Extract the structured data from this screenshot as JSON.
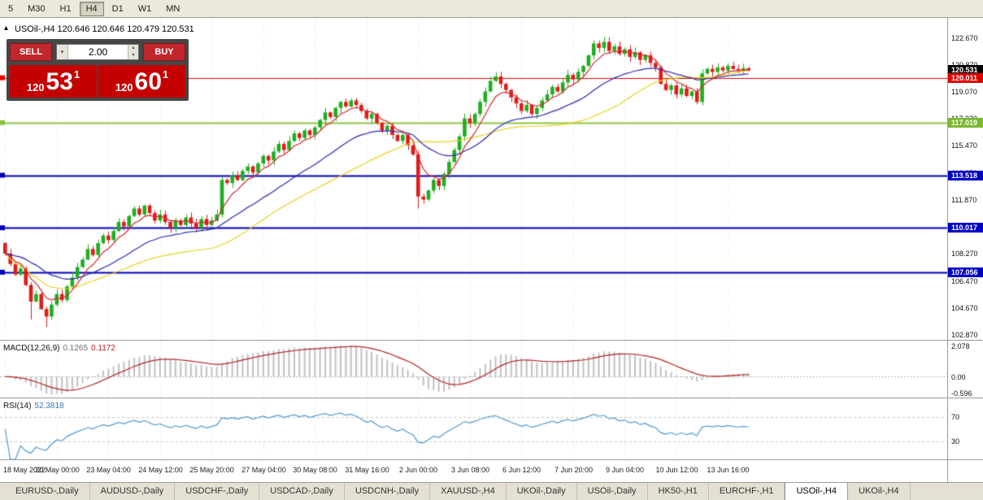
{
  "toolbar": {
    "timeframes": [
      "5",
      "M30",
      "H1",
      "H4",
      "D1",
      "W1",
      "MN"
    ],
    "active": "H4"
  },
  "chart": {
    "title": "USOil-,H4 120.646 120.646 120.479 120.531"
  },
  "icons": {
    "collapse": "▴",
    "dropdown": "▾",
    "spin_up": "▴",
    "spin_down": "▾"
  },
  "trade_panel": {
    "sell_label": "SELL",
    "buy_label": "BUY",
    "volume": "2.00",
    "sell_price": {
      "prefix": "120",
      "big": "53",
      "sup": "1"
    },
    "buy_price": {
      "prefix": "120",
      "big": "60",
      "sup": "1"
    }
  },
  "price_axis": {
    "ticks": [
      122.67,
      120.87,
      119.07,
      117.27,
      115.47,
      113.67,
      111.87,
      110.07,
      108.27,
      106.47,
      104.67,
      102.87
    ],
    "badges": [
      {
        "value": "120.531",
        "price": 120.531,
        "bg": "#000000",
        "kind": "current"
      },
      {
        "value": "120.011",
        "price": 120.011,
        "bg": "#e00000",
        "kind": "line"
      },
      {
        "value": "117.019",
        "price": 117.019,
        "bg": "#7ab82e",
        "kind": "line"
      },
      {
        "value": "113.518",
        "price": 113.518,
        "bg": "#0000c8",
        "kind": "line"
      },
      {
        "value": "110.017",
        "price": 110.017,
        "bg": "#0000c8",
        "kind": "line"
      },
      {
        "value": "107.056",
        "price": 107.056,
        "bg": "#0000c8",
        "kind": "line"
      }
    ]
  },
  "macd": {
    "name": "MACD(12,26,9)",
    "value1": "0.1265",
    "value2": "0.1172",
    "axis_top": "2.078",
    "axis_zero": "0.00",
    "axis_bottom": "-0.596"
  },
  "rsi": {
    "name": "RSI(14)",
    "value": "52.3818",
    "levels": [
      70,
      30
    ],
    "level_labels": [
      "70",
      "30"
    ]
  },
  "time_axis": [
    "18 May 2022",
    "20 May 00:00",
    "23 May 04:00",
    "24 May 12:00",
    "25 May 20:00",
    "27 May 04:00",
    "30 May 08:00",
    "31 May 16:00",
    "2 Jun 00:00",
    "3 Jun 08:00",
    "6 Jun 12:00",
    "7 Jun 20:00",
    "9 Jun 04:00",
    "10 Jun 12:00",
    "13 Jun 16:00"
  ],
  "tabs": {
    "items": [
      "EURUSD-,Daily",
      "AUDUSD-,Daily",
      "USDCHF-,Daily",
      "USDCAD-,Daily",
      "USDCNH-,Daily",
      "XAUUSD-,H4",
      "UKOil-,Daily",
      "USOil-,Daily",
      "HK50-,H1",
      "EURCHF-,H1",
      "USOil-,H4",
      "UKOil-,H4"
    ],
    "active": "USOil-,H4"
  },
  "chart_data": {
    "type": "candlestick",
    "symbol": "USOil-",
    "period": "H4",
    "last_ohlc": {
      "open": 120.646,
      "high": 120.646,
      "low": 120.479,
      "close": 120.531
    },
    "price_range": [
      102.55,
      124.0
    ],
    "first_open": 109.0,
    "closes": [
      108.3,
      107.6,
      106.9,
      107.3,
      106.2,
      105.1,
      105.6,
      104.6,
      104.1,
      104.9,
      105.6,
      105.2,
      106.1,
      106.7,
      107.4,
      107.9,
      108.6,
      108.2,
      109.0,
      109.5,
      109.2,
      109.8,
      110.4,
      110.1,
      110.8,
      111.3,
      110.9,
      111.5,
      111.0,
      110.5,
      110.9,
      110.4,
      110.0,
      110.5,
      110.2,
      110.7,
      110.3,
      110.0,
      110.6,
      110.2,
      110.5,
      110.9,
      113.2,
      113.0,
      113.5,
      113.2,
      113.8,
      114.1,
      113.7,
      114.3,
      114.8,
      114.5,
      115.1,
      115.6,
      115.2,
      115.8,
      116.3,
      116.0,
      116.5,
      116.2,
      116.7,
      117.2,
      117.7,
      117.4,
      118.0,
      118.4,
      118.1,
      118.5,
      118.2,
      117.8,
      117.3,
      117.6,
      117.0,
      116.5,
      116.8,
      116.2,
      115.8,
      116.2,
      115.5,
      114.9,
      112.1,
      111.9,
      112.5,
      113.2,
      112.8,
      113.6,
      114.4,
      115.2,
      116.1,
      117.3,
      117.0,
      117.6,
      118.4,
      119.1,
      119.8,
      120.1,
      119.6,
      119.2,
      118.7,
      118.3,
      117.8,
      118.2,
      117.6,
      118.0,
      118.5,
      118.9,
      119.4,
      119.1,
      119.7,
      120.2,
      119.9,
      120.4,
      120.8,
      121.5,
      122.3,
      122.0,
      122.4,
      121.8,
      122.1,
      121.6,
      121.9,
      121.4,
      121.7,
      121.2,
      121.5,
      121.0,
      120.7,
      119.6,
      119.2,
      119.5,
      118.9,
      119.3,
      118.8,
      119.1,
      118.4,
      120.3,
      120.6,
      120.4,
      120.7,
      120.5,
      120.8,
      120.6,
      120.5,
      120.65,
      120.531
    ],
    "wick_overrides": {
      "5": {
        "low": 103.9
      },
      "8": {
        "low": 103.4
      },
      "80": {
        "low": 111.3
      },
      "116": {
        "high": 122.72
      },
      "134": {
        "low": 118.25
      }
    },
    "hlines": [
      {
        "price": 120.011,
        "color": "#f00000",
        "width": 1
      },
      {
        "price": 117.019,
        "color": "#8cc63e",
        "width": 2
      },
      {
        "price": 113.518,
        "color": "#0000bb",
        "width": 2
      },
      {
        "price": 110.017,
        "color": "#0000bb",
        "width": 2
      },
      {
        "price": 107.056,
        "color": "#0000bb",
        "width": 2
      }
    ],
    "ma_colors": {
      "fast": "#d02828",
      "medium": "#2828b0",
      "slow": "#e6d21e"
    },
    "candle_colors": {
      "up": "#1fae1f",
      "down": "#e01b1b"
    },
    "macd_histogram_color": "#c0c0c0",
    "macd_signal_color": "#b22222",
    "rsi_line_color": "#4f9ad1"
  }
}
